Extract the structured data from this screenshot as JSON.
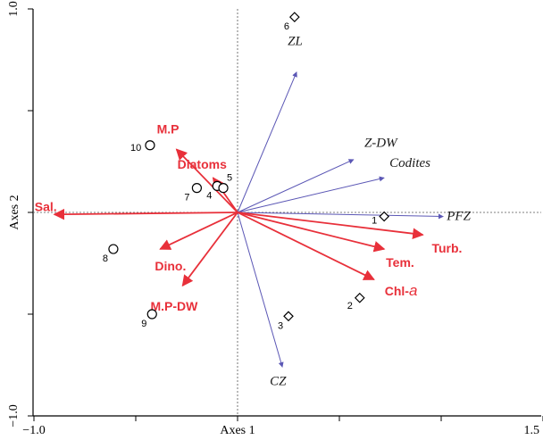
{
  "chart_data": {
    "type": "scatter",
    "subtype": "rda-biplot",
    "xlabel": "Axes 1",
    "ylabel": "Axes 2",
    "xlim": [
      -1.0,
      1.5
    ],
    "ylim": [
      -1.0,
      1.0
    ],
    "xtick_labels": [
      {
        "value": -1.0,
        "text": "−1.0"
      },
      {
        "value": 1.5,
        "text": "1.5"
      }
    ],
    "ytick_labels": [
      {
        "value": 1.0,
        "text": "1.0"
      },
      {
        "value": -1.0,
        "text": "−1.0"
      }
    ],
    "minor_ticks_x": [
      -0.5,
      0.0,
      0.5,
      1.0
    ],
    "minor_ticks_y": [
      0.5,
      0.0,
      -0.5
    ],
    "reference_lines": {
      "x": 0,
      "y": 0,
      "style": "dotted"
    },
    "environmental_vectors": [
      {
        "label": "Sal.",
        "x": -0.9,
        "y": -0.01
      },
      {
        "label": "M.P",
        "x": -0.3,
        "y": 0.31
      },
      {
        "label": "Diatoms",
        "x": -0.12,
        "y": 0.17
      },
      {
        "label": "Dino.",
        "x": -0.38,
        "y": -0.18
      },
      {
        "label": "M.P-DW",
        "x": -0.27,
        "y": -0.36
      },
      {
        "label": "Tem.",
        "x": 0.72,
        "y": -0.18
      },
      {
        "label": "Turb.",
        "x": 0.91,
        "y": -0.11
      },
      {
        "label": "Chl-",
        "label_suffix": "a",
        "x": 0.67,
        "y": -0.33
      }
    ],
    "species_vectors": [
      {
        "label": "ZL",
        "x": 0.29,
        "y": 0.69
      },
      {
        "label": "Z-DW",
        "x": 0.57,
        "y": 0.26
      },
      {
        "label": "Codites",
        "x": 0.72,
        "y": 0.17
      },
      {
        "label": "PFZ",
        "x": 1.01,
        "y": -0.02
      },
      {
        "label": "CZ",
        "x": 0.22,
        "y": -0.76
      }
    ],
    "sites": [
      {
        "id": "1",
        "x": 0.72,
        "y": -0.02,
        "marker": "diamond"
      },
      {
        "id": "2",
        "x": 0.6,
        "y": -0.42,
        "marker": "diamond"
      },
      {
        "id": "3",
        "x": 0.25,
        "y": -0.51,
        "marker": "diamond"
      },
      {
        "id": "4",
        "x": -0.1,
        "y": 0.13,
        "marker": "circle"
      },
      {
        "id": "5",
        "x": -0.07,
        "y": 0.12,
        "marker": "circle"
      },
      {
        "id": "6",
        "x": 0.28,
        "y": 0.96,
        "marker": "diamond"
      },
      {
        "id": "7",
        "x": -0.2,
        "y": 0.12,
        "marker": "circle"
      },
      {
        "id": "8",
        "x": -0.61,
        "y": -0.18,
        "marker": "circle"
      },
      {
        "id": "9",
        "x": -0.42,
        "y": -0.5,
        "marker": "circle"
      },
      {
        "id": "10",
        "x": -0.43,
        "y": 0.33,
        "marker": "circle"
      }
    ],
    "colors": {
      "environmental": "#e8303a",
      "species": "#5b57b5",
      "points": "#000000",
      "axes": "#000000"
    }
  }
}
